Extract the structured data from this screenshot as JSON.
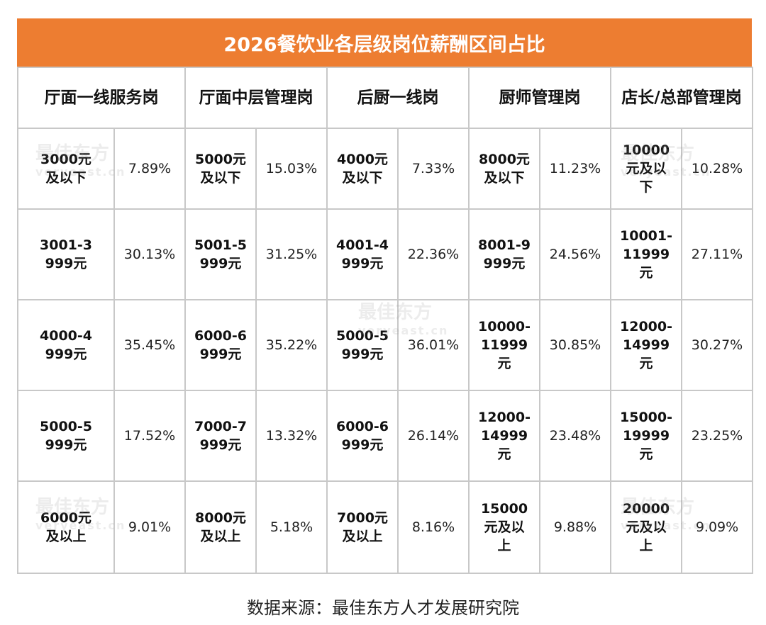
{
  "chart_data": {
    "type": "table",
    "title": "2026餐饮业各层级岗位薪酬区间占比",
    "columns": [
      "厅面一线服务岗",
      "厅面中层管理岗",
      "后厨一线岗",
      "厨师管理岗",
      "店长/总部管理岗"
    ],
    "rows": [
      [
        {
          "range": "3000元及以下",
          "pct": "7.89%"
        },
        {
          "range": "5000元及以下",
          "pct": "15.03%"
        },
        {
          "range": "4000元及以下",
          "pct": "7.33%"
        },
        {
          "range": "8000元及以下",
          "pct": "11.23%"
        },
        {
          "range": "10000元及以下",
          "pct": "10.28%"
        }
      ],
      [
        {
          "range": "3001-3999元",
          "pct": "30.13%"
        },
        {
          "range": "5001-5999元",
          "pct": "31.25%"
        },
        {
          "range": "4001-4999元",
          "pct": "22.36%"
        },
        {
          "range": "8001-9999元",
          "pct": "24.56%"
        },
        {
          "range": "10001-11999元",
          "pct": "27.11%"
        }
      ],
      [
        {
          "range": "4000-4999元",
          "pct": "35.45%"
        },
        {
          "range": "6000-6999元",
          "pct": "35.22%"
        },
        {
          "range": "5000-5999元",
          "pct": "36.01%"
        },
        {
          "range": "10000-11999元",
          "pct": "30.85%"
        },
        {
          "range": "12000-14999元",
          "pct": "30.27%"
        }
      ],
      [
        {
          "range": "5000-5999元",
          "pct": "17.52%"
        },
        {
          "range": "7000-7999元",
          "pct": "13.32%"
        },
        {
          "range": "6000-6999元",
          "pct": "26.14%"
        },
        {
          "range": "12000-14999元",
          "pct": "23.48%"
        },
        {
          "range": "15000-19999元",
          "pct": "23.25%"
        }
      ],
      [
        {
          "range": "6000元及以上",
          "pct": "9.01%"
        },
        {
          "range": "8000元及以上",
          "pct": "5.18%"
        },
        {
          "range": "7000元及以上",
          "pct": "8.16%"
        },
        {
          "range": "15000元及以上",
          "pct": "9.88%"
        },
        {
          "range": "20000元及以上",
          "pct": "9.09%"
        }
      ]
    ],
    "header_color": "#ED7D31"
  },
  "source": "数据来源：最佳东方人才发展研究院",
  "watermark": {
    "logo": "最佳东方",
    "url": "veryeast.cn"
  }
}
